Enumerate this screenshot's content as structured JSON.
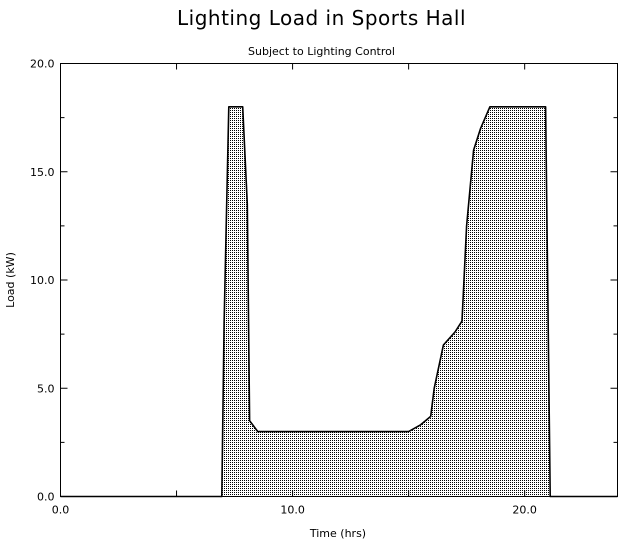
{
  "chart_data": {
    "type": "area",
    "title": "Lighting Load in Sports Hall",
    "subtitle": "Subject to Lighting Control",
    "xlabel": "Time (hrs)",
    "ylabel": "Load (kW)",
    "xlim": [
      0,
      24
    ],
    "ylim": [
      0,
      20
    ],
    "xticks": [
      0,
      10,
      20
    ],
    "xtick_labels": [
      "0.0",
      "10.0",
      "20.0"
    ],
    "yticks": [
      0,
      5,
      10,
      15,
      20
    ],
    "ytick_labels": [
      "0.0",
      "5.0",
      "10.0",
      "15.0",
      "20.0"
    ],
    "grid": false,
    "fill_pattern": "dotted",
    "series": [
      {
        "x": [
          0,
          6.95,
          7.05,
          7.25,
          7.85,
          8.05,
          8.15,
          8.5,
          10.0,
          12.0,
          14.0,
          15.0,
          15.5,
          15.95,
          16.1,
          16.5,
          17.0,
          17.3,
          17.5,
          17.8,
          18.1,
          18.5,
          19.0,
          20.0,
          20.9,
          21.1,
          24
        ],
        "y": [
          0,
          0,
          8.0,
          18.0,
          18.0,
          13.5,
          3.5,
          3.0,
          3.0,
          3.0,
          3.0,
          3.0,
          3.3,
          3.7,
          5.0,
          7.0,
          7.6,
          8.1,
          12.5,
          16.0,
          17.0,
          18.0,
          18.0,
          18.0,
          18.0,
          0,
          0
        ]
      }
    ]
  }
}
